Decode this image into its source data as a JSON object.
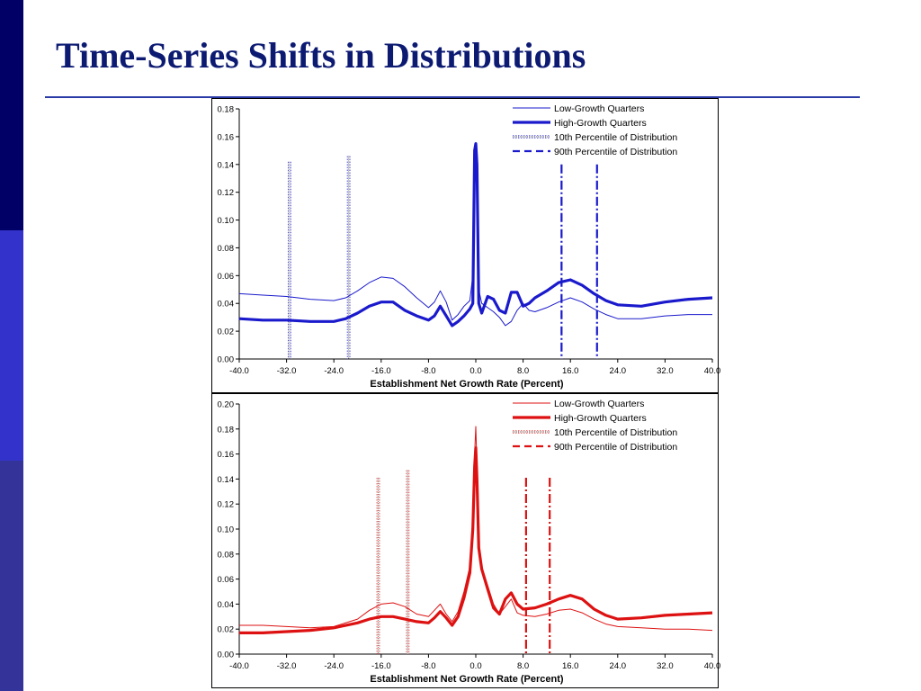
{
  "slide": {
    "title": "Time-Series Shifts in Distributions",
    "sidebar_colors": [
      "#000066",
      "#3333cc",
      "#333399"
    ],
    "title_color": "#0c1a72"
  },
  "chart_data": [
    {
      "type": "line",
      "title": "",
      "xlabel": "Establishment Net Growth Rate (Percent)",
      "ylabel": "",
      "xlim": [
        -40,
        40
      ],
      "ylim": [
        0,
        0.18
      ],
      "xticks": [
        "-40.0",
        "-32.0",
        "-24.0",
        "-16.0",
        "-8.0",
        "0.0",
        "8.0",
        "16.0",
        "24.0",
        "32.0",
        "40.0"
      ],
      "yticks": [
        "0.00",
        "0.02",
        "0.04",
        "0.06",
        "0.08",
        "0.10",
        "0.12",
        "0.14",
        "0.16",
        "0.18"
      ],
      "color": "#1a1acc",
      "legend_position": "top-right",
      "grid": false,
      "series": [
        {
          "name": "Low-Growth Quarters",
          "style": "thin",
          "x": [
            -40,
            -36,
            -32,
            -28,
            -24,
            -22,
            -20,
            -18,
            -16,
            -14,
            -12,
            -10,
            -8,
            -7,
            -6,
            -5,
            -4,
            -3,
            -2,
            -1,
            -0.5,
            -0.2,
            0,
            0.2,
            0.5,
            1,
            2,
            3,
            4,
            5,
            6,
            7,
            8,
            9,
            10,
            12,
            14,
            16,
            18,
            20,
            22,
            24,
            28,
            32,
            36,
            40
          ],
          "y": [
            0.047,
            0.046,
            0.045,
            0.043,
            0.042,
            0.044,
            0.049,
            0.055,
            0.059,
            0.058,
            0.052,
            0.044,
            0.037,
            0.041,
            0.049,
            0.041,
            0.028,
            0.032,
            0.038,
            0.042,
            0.06,
            0.14,
            0.15,
            0.12,
            0.05,
            0.04,
            0.037,
            0.034,
            0.03,
            0.024,
            0.027,
            0.035,
            0.04,
            0.035,
            0.034,
            0.037,
            0.041,
            0.044,
            0.041,
            0.036,
            0.032,
            0.029,
            0.029,
            0.031,
            0.032,
            0.032
          ]
        },
        {
          "name": "High-Growth Quarters",
          "style": "thick",
          "x": [
            -40,
            -36,
            -32,
            -28,
            -24,
            -22,
            -20,
            -18,
            -16,
            -14,
            -12,
            -10,
            -8,
            -7,
            -6,
            -5,
            -4,
            -3,
            -2,
            -1,
            -0.5,
            -0.2,
            0,
            0.2,
            0.5,
            1,
            2,
            3,
            4,
            5,
            6,
            7,
            8,
            9,
            10,
            12,
            14,
            16,
            18,
            20,
            22,
            24,
            28,
            32,
            36,
            40
          ],
          "y": [
            0.029,
            0.028,
            0.028,
            0.027,
            0.027,
            0.029,
            0.033,
            0.038,
            0.041,
            0.041,
            0.035,
            0.031,
            0.028,
            0.031,
            0.038,
            0.031,
            0.024,
            0.027,
            0.031,
            0.036,
            0.04,
            0.15,
            0.155,
            0.14,
            0.04,
            0.033,
            0.045,
            0.043,
            0.035,
            0.033,
            0.048,
            0.048,
            0.038,
            0.04,
            0.044,
            0.049,
            0.055,
            0.057,
            0.053,
            0.047,
            0.042,
            0.039,
            0.038,
            0.041,
            0.043,
            0.044
          ]
        }
      ],
      "percentile_lines": [
        {
          "name": "10th Percentile of Distribution",
          "style": "dotted",
          "values": [
            -31.5,
            -21.5
          ],
          "ytop": [
            0.142,
            0.146
          ]
        },
        {
          "name": "90th Percentile of Distribution",
          "style": "dashdot",
          "values": [
            14.5,
            20.5
          ],
          "ytop": [
            0.14,
            0.14
          ]
        }
      ]
    },
    {
      "type": "line",
      "title": "",
      "xlabel": "Establishment Net Growth Rate (Percent)",
      "ylabel": "",
      "xlim": [
        -40,
        40
      ],
      "ylim": [
        0,
        0.2
      ],
      "xticks": [
        "-40.0",
        "-32.0",
        "-24.0",
        "-16.0",
        "-8.0",
        "0.0",
        "8.0",
        "16.0",
        "24.0",
        "32.0",
        "40.0"
      ],
      "yticks": [
        "0.00",
        "0.02",
        "0.04",
        "0.06",
        "0.08",
        "0.10",
        "0.12",
        "0.14",
        "0.16",
        "0.18",
        "0.20"
      ],
      "color": "#dd1111",
      "legend_position": "top-right",
      "grid": false,
      "series": [
        {
          "name": "Low-Growth Quarters",
          "style": "thin",
          "x": [
            -40,
            -36,
            -32,
            -28,
            -24,
            -20,
            -18,
            -16,
            -14,
            -12,
            -10,
            -8,
            -7,
            -6,
            -5,
            -4,
            -3,
            -2,
            -1,
            -0.5,
            -0.2,
            0,
            0.2,
            0.5,
            1,
            2,
            3,
            4,
            5,
            6,
            7,
            8,
            10,
            12,
            14,
            16,
            18,
            20,
            22,
            24,
            28,
            32,
            36,
            40
          ],
          "y": [
            0.023,
            0.023,
            0.022,
            0.021,
            0.022,
            0.028,
            0.035,
            0.04,
            0.041,
            0.038,
            0.032,
            0.03,
            0.035,
            0.04,
            0.032,
            0.026,
            0.034,
            0.05,
            0.07,
            0.11,
            0.16,
            0.182,
            0.15,
            0.09,
            0.07,
            0.055,
            0.04,
            0.032,
            0.038,
            0.044,
            0.033,
            0.031,
            0.03,
            0.032,
            0.035,
            0.036,
            0.033,
            0.028,
            0.024,
            0.022,
            0.021,
            0.02,
            0.02,
            0.019
          ]
        },
        {
          "name": "High-Growth Quarters",
          "style": "thick",
          "x": [
            -40,
            -36,
            -32,
            -28,
            -24,
            -20,
            -18,
            -16,
            -14,
            -12,
            -10,
            -8,
            -7,
            -6,
            -5,
            -4,
            -3,
            -2,
            -1,
            -0.5,
            -0.2,
            0,
            0.2,
            0.5,
            1,
            2,
            3,
            4,
            5,
            6,
            7,
            8,
            10,
            12,
            14,
            16,
            18,
            20,
            22,
            24,
            28,
            32,
            36,
            40
          ],
          "y": [
            0.017,
            0.017,
            0.018,
            0.019,
            0.021,
            0.025,
            0.028,
            0.03,
            0.03,
            0.028,
            0.026,
            0.025,
            0.029,
            0.034,
            0.029,
            0.023,
            0.03,
            0.045,
            0.065,
            0.1,
            0.15,
            0.165,
            0.14,
            0.085,
            0.068,
            0.052,
            0.037,
            0.032,
            0.044,
            0.049,
            0.04,
            0.036,
            0.037,
            0.04,
            0.044,
            0.047,
            0.044,
            0.036,
            0.031,
            0.028,
            0.029,
            0.031,
            0.032,
            0.033
          ]
        }
      ],
      "percentile_lines": [
        {
          "name": "10th Percentile of Distribution",
          "style": "dotted",
          "values": [
            -16.5,
            -11.5
          ],
          "ytop": [
            0.141,
            0.147
          ]
        },
        {
          "name": "90th Percentile of Distribution",
          "style": "dashdot",
          "values": [
            8.5,
            12.5
          ],
          "ytop": [
            0.141,
            0.141
          ]
        }
      ]
    }
  ]
}
